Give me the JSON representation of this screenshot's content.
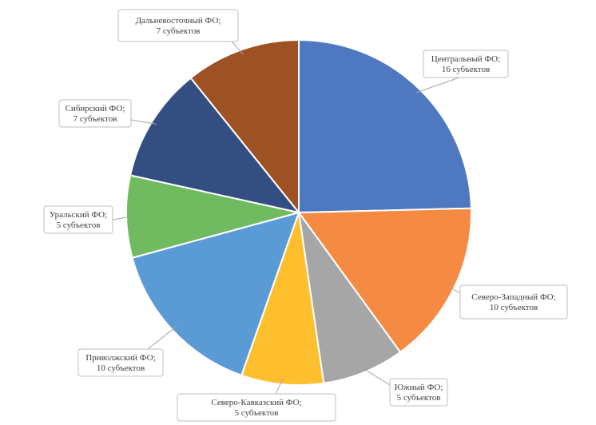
{
  "chart_data": {
    "type": "pie",
    "title": "",
    "start": "top",
    "direction": "clockwise",
    "slices": [
      {
        "name": "Центральный ФО",
        "value": 16,
        "label_line1": "Центральный ФО;",
        "label_line2": "16 субъектов",
        "color": "#4e79c0"
      },
      {
        "name": "Северо-Западный ФО",
        "value": 10,
        "label_line1": "Северо-Западный ФО;",
        "label_line2": "10 субъектов",
        "color": "#f58b43"
      },
      {
        "name": "Южный ФО",
        "value": 5,
        "label_line1": "Южный ФО;",
        "label_line2": "5 субъектов",
        "color": "#a6a6a6"
      },
      {
        "name": "Северо-Кавказский ФО",
        "value": 5,
        "label_line1": "Северо-Кавказский ФО;",
        "label_line2": "5 субъектов",
        "color": "#fdbf2d"
      },
      {
        "name": "Приволжский ФО",
        "value": 10,
        "label_line1": "Приволжский ФО;",
        "label_line2": "10 субъектов",
        "color": "#5b9bd5"
      },
      {
        "name": "Уральский ФО",
        "value": 5,
        "label_line1": "Уральский ФО;",
        "label_line2": "5 субъектов",
        "color": "#70bb5f"
      },
      {
        "name": "Сибирский ФО",
        "value": 7,
        "label_line1": "Сибирский ФО;",
        "label_line2": "7 субъектов",
        "color": "#334f82"
      },
      {
        "name": "Дальневосточный ФО",
        "value": 7,
        "label_line1": "Дальневосточный ФО;",
        "label_line2": "7 субъектов",
        "color": "#9e5224"
      }
    ]
  }
}
